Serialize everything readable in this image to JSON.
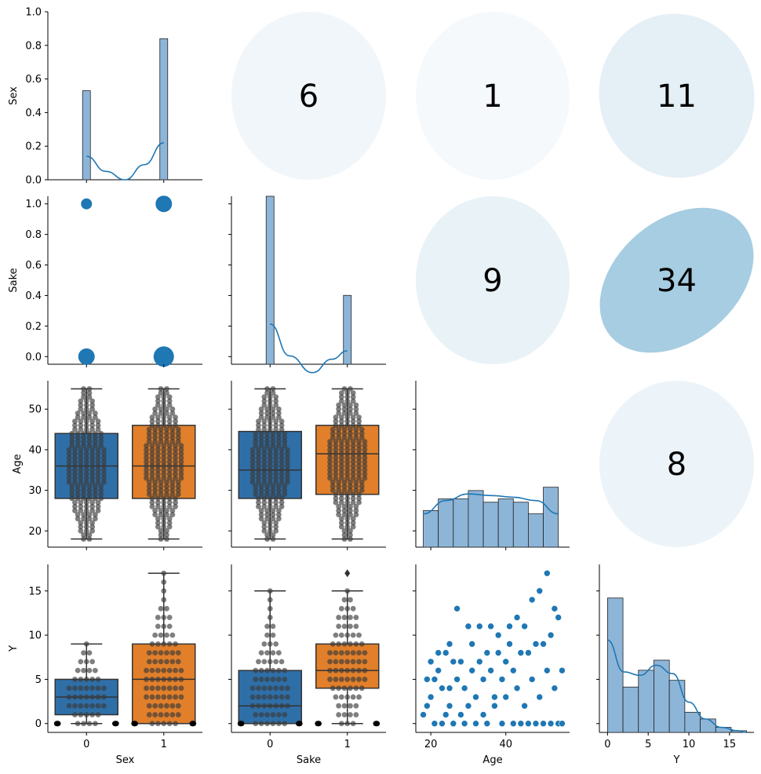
{
  "variables": [
    "Sex",
    "Sake",
    "Age",
    "Y"
  ],
  "colors": {
    "blue": "#1f77b4",
    "box_blue": "#2f6fa8",
    "box_orange": "#e17f2a",
    "hist_fill": "#8db5d8",
    "swarm": "#3a3a3a",
    "ellipse_base": "#4a90c0",
    "axis": "#000000"
  },
  "chart_data": [
    {
      "panel": "Sex-Sex",
      "type": "histogram+kde",
      "ylabel": "Sex",
      "ylim": [
        0,
        1.0
      ],
      "yticks": [
        "0.0",
        "0.2",
        "0.4",
        "0.6",
        "0.8",
        "1.0"
      ],
      "bars": [
        {
          "x": 0,
          "height": 0.53
        },
        {
          "x": 1,
          "height": 0.84
        }
      ],
      "kde": [
        [
          0,
          0.14
        ],
        [
          0.25,
          0.05
        ],
        [
          0.5,
          0.0
        ],
        [
          0.75,
          0.09
        ],
        [
          1,
          0.22
        ]
      ]
    },
    {
      "panel": "Sake-Sex",
      "type": "correlation-ellipse",
      "value": "6",
      "shape": "round",
      "intensity": 0.08
    },
    {
      "panel": "Age-Sex",
      "type": "correlation-ellipse",
      "value": "1",
      "shape": "round",
      "intensity": 0.05
    },
    {
      "panel": "Y-Sex",
      "type": "correlation-ellipse",
      "value": "11",
      "shape": "slight-tilt",
      "intensity": 0.14
    },
    {
      "panel": "Sex-Sake",
      "type": "bubble",
      "ylabel": "Sake",
      "yticks": [
        "0.0",
        "0.2",
        "0.4",
        "0.6",
        "0.8",
        "1.0"
      ],
      "ylim": [
        0,
        1.0
      ],
      "points": [
        {
          "x": 0,
          "y": 1,
          "size": "small"
        },
        {
          "x": 1,
          "y": 1,
          "size": "medium"
        },
        {
          "x": 0,
          "y": 0,
          "size": "medium"
        },
        {
          "x": 1,
          "y": 0,
          "size": "large"
        }
      ]
    },
    {
      "panel": "Sake-Sake",
      "type": "histogram+kde",
      "ylim": [
        0,
        1.0
      ],
      "bars": [
        {
          "x": 0,
          "height": 1.0
        },
        {
          "x": 1,
          "height": 0.41
        }
      ],
      "kde": [
        [
          0,
          0.24
        ],
        [
          0.25,
          0.05
        ],
        [
          0.55,
          -0.05
        ],
        [
          0.8,
          0.03
        ],
        [
          1,
          0.08
        ]
      ]
    },
    {
      "panel": "Age-Sake",
      "type": "correlation-ellipse",
      "value": "9",
      "shape": "round",
      "intensity": 0.12
    },
    {
      "panel": "Y-Sake",
      "type": "correlation-ellipse",
      "value": "34",
      "shape": "tilted",
      "intensity": 0.45
    },
    {
      "panel": "Sex-Age",
      "type": "box+swarm",
      "ylabel": "Age",
      "yticks": [
        "20",
        "30",
        "40",
        "50"
      ],
      "ylim": [
        16,
        57
      ],
      "boxes": [
        {
          "x": 0,
          "whisker_low": 18,
          "q1": 28,
          "median": 36,
          "q3": 44,
          "whisker_high": 55
        },
        {
          "x": 1,
          "whisker_low": 18,
          "q1": 28,
          "median": 36,
          "q3": 46,
          "whisker_high": 55
        }
      ]
    },
    {
      "panel": "Sake-Age",
      "type": "box+swarm",
      "boxes": [
        {
          "x": 0,
          "whisker_low": 18,
          "q1": 28,
          "median": 35,
          "q3": 44.5,
          "whisker_high": 55
        },
        {
          "x": 1,
          "whisker_low": 18,
          "q1": 29,
          "median": 39,
          "q3": 46,
          "whisker_high": 55
        }
      ]
    },
    {
      "panel": "Age-Age",
      "type": "histogram+kde",
      "xlim": [
        16,
        57
      ],
      "bars": [
        {
          "x0": 18,
          "x1": 22,
          "height": 0.22
        },
        {
          "x0": 22,
          "x1": 26,
          "height": 0.29
        },
        {
          "x0": 26,
          "x1": 30,
          "height": 0.29
        },
        {
          "x0": 30,
          "x1": 34,
          "height": 0.34
        },
        {
          "x0": 34,
          "x1": 38,
          "height": 0.27
        },
        {
          "x0": 38,
          "x1": 42,
          "height": 0.29
        },
        {
          "x0": 42,
          "x1": 46,
          "height": 0.27
        },
        {
          "x0": 46,
          "x1": 50,
          "height": 0.2
        },
        {
          "x0": 50,
          "x1": 54,
          "height": 0.36
        }
      ],
      "kde": [
        [
          18,
          0.2
        ],
        [
          24,
          0.28
        ],
        [
          30,
          0.32
        ],
        [
          36,
          0.31
        ],
        [
          42,
          0.3
        ],
        [
          48,
          0.28
        ],
        [
          54,
          0.2
        ]
      ]
    },
    {
      "panel": "Y-Age",
      "type": "correlation-ellipse",
      "value": "8",
      "shape": "round",
      "intensity": 0.1
    },
    {
      "panel": "Sex-Y",
      "type": "box+swarm",
      "ylabel": "Y",
      "xlabel": "Sex",
      "yticks": [
        "0",
        "5",
        "10",
        "15"
      ],
      "xticks": [
        "0",
        "1"
      ],
      "ylim": [
        -1,
        18
      ],
      "boxes": [
        {
          "x": 0,
          "whisker_low": 0,
          "q1": 1,
          "median": 3,
          "q3": 5,
          "whisker_high": 9
        },
        {
          "x": 1,
          "whisker_low": 0,
          "q1": 0,
          "median": 5,
          "q3": 9,
          "whisker_high": 17
        }
      ]
    },
    {
      "panel": "Sake-Y",
      "type": "box+swarm",
      "xlabel": "Sake",
      "xticks": [
        "0",
        "1"
      ],
      "boxes": [
        {
          "x": 0,
          "whisker_low": 0,
          "q1": 0,
          "median": 2,
          "q3": 6,
          "whisker_high": 15
        },
        {
          "x": 1,
          "whisker_low": 0,
          "q1": 4,
          "median": 6,
          "q3": 9,
          "whisker_high": 15
        }
      ],
      "outliers": [
        {
          "x": 1,
          "y": 17
        }
      ]
    },
    {
      "panel": "Age-Y",
      "type": "scatter",
      "xlabel": "Age",
      "xticks": [
        "20",
        "40"
      ],
      "xlim": [
        16,
        57
      ],
      "ylim": [
        -1,
        18
      ],
      "points": [
        [
          18,
          1
        ],
        [
          19,
          2
        ],
        [
          19,
          5
        ],
        [
          20,
          7
        ],
        [
          20,
          3
        ],
        [
          21,
          5
        ],
        [
          21,
          0
        ],
        [
          22,
          8
        ],
        [
          22,
          6
        ],
        [
          23,
          0
        ],
        [
          23,
          4
        ],
        [
          24,
          1
        ],
        [
          24,
          8
        ],
        [
          25,
          2
        ],
        [
          25,
          4
        ],
        [
          25,
          9
        ],
        [
          26,
          0
        ],
        [
          26,
          7
        ],
        [
          27,
          13
        ],
        [
          27,
          5
        ],
        [
          28,
          1
        ],
        [
          28,
          7
        ],
        [
          29,
          0
        ],
        [
          29,
          4
        ],
        [
          30,
          11
        ],
        [
          30,
          2
        ],
        [
          31,
          6
        ],
        [
          31,
          9
        ],
        [
          32,
          0
        ],
        [
          32,
          3
        ],
        [
          33,
          7
        ],
        [
          33,
          11
        ],
        [
          34,
          1
        ],
        [
          34,
          5
        ],
        [
          35,
          8
        ],
        [
          35,
          0
        ],
        [
          36,
          11
        ],
        [
          36,
          6
        ],
        [
          37,
          3
        ],
        [
          37,
          2
        ],
        [
          38,
          10
        ],
        [
          38,
          8
        ],
        [
          39,
          0
        ],
        [
          39,
          5
        ],
        [
          40,
          7
        ],
        [
          40,
          3
        ],
        [
          41,
          9
        ],
        [
          41,
          11
        ],
        [
          42,
          0
        ],
        [
          42,
          6
        ],
        [
          43,
          12
        ],
        [
          43,
          4
        ],
        [
          44,
          8
        ],
        [
          44,
          0
        ],
        [
          45,
          11
        ],
        [
          45,
          2
        ],
        [
          46,
          8
        ],
        [
          46,
          0
        ],
        [
          47,
          14
        ],
        [
          47,
          5
        ],
        [
          48,
          9
        ],
        [
          48,
          0
        ],
        [
          49,
          15
        ],
        [
          49,
          3
        ],
        [
          50,
          9
        ],
        [
          50,
          0
        ],
        [
          51,
          17
        ],
        [
          51,
          6
        ],
        [
          52,
          10
        ],
        [
          52,
          0
        ],
        [
          53,
          13
        ],
        [
          53,
          4
        ],
        [
          54,
          12
        ],
        [
          54,
          0
        ],
        [
          55,
          6
        ],
        [
          55,
          0
        ]
      ]
    },
    {
      "panel": "Y-Y",
      "type": "histogram+kde",
      "xlabel": "Y",
      "xticks": [
        "0",
        "5",
        "10",
        "15"
      ],
      "xlim": [
        -1,
        18
      ],
      "bars": [
        {
          "x0": 0,
          "x1": 1.9,
          "height": 0.8
        },
        {
          "x0": 1.9,
          "x1": 3.8,
          "height": 0.27
        },
        {
          "x0": 3.8,
          "x1": 5.7,
          "height": 0.37
        },
        {
          "x0": 5.7,
          "x1": 7.6,
          "height": 0.43
        },
        {
          "x0": 7.6,
          "x1": 9.5,
          "height": 0.31
        },
        {
          "x0": 9.5,
          "x1": 11.4,
          "height": 0.12
        },
        {
          "x0": 11.4,
          "x1": 13.3,
          "height": 0.08
        },
        {
          "x0": 13.3,
          "x1": 15.2,
          "height": 0.03
        },
        {
          "x0": 15.2,
          "x1": 17.1,
          "height": 0.01
        }
      ],
      "kde": [
        [
          0,
          0.55
        ],
        [
          2,
          0.36
        ],
        [
          4,
          0.34
        ],
        [
          6,
          0.4
        ],
        [
          8,
          0.35
        ],
        [
          10,
          0.18
        ],
        [
          12,
          0.08
        ],
        [
          14,
          0.03
        ],
        [
          16,
          0.01
        ],
        [
          17,
          0.0
        ]
      ]
    }
  ]
}
